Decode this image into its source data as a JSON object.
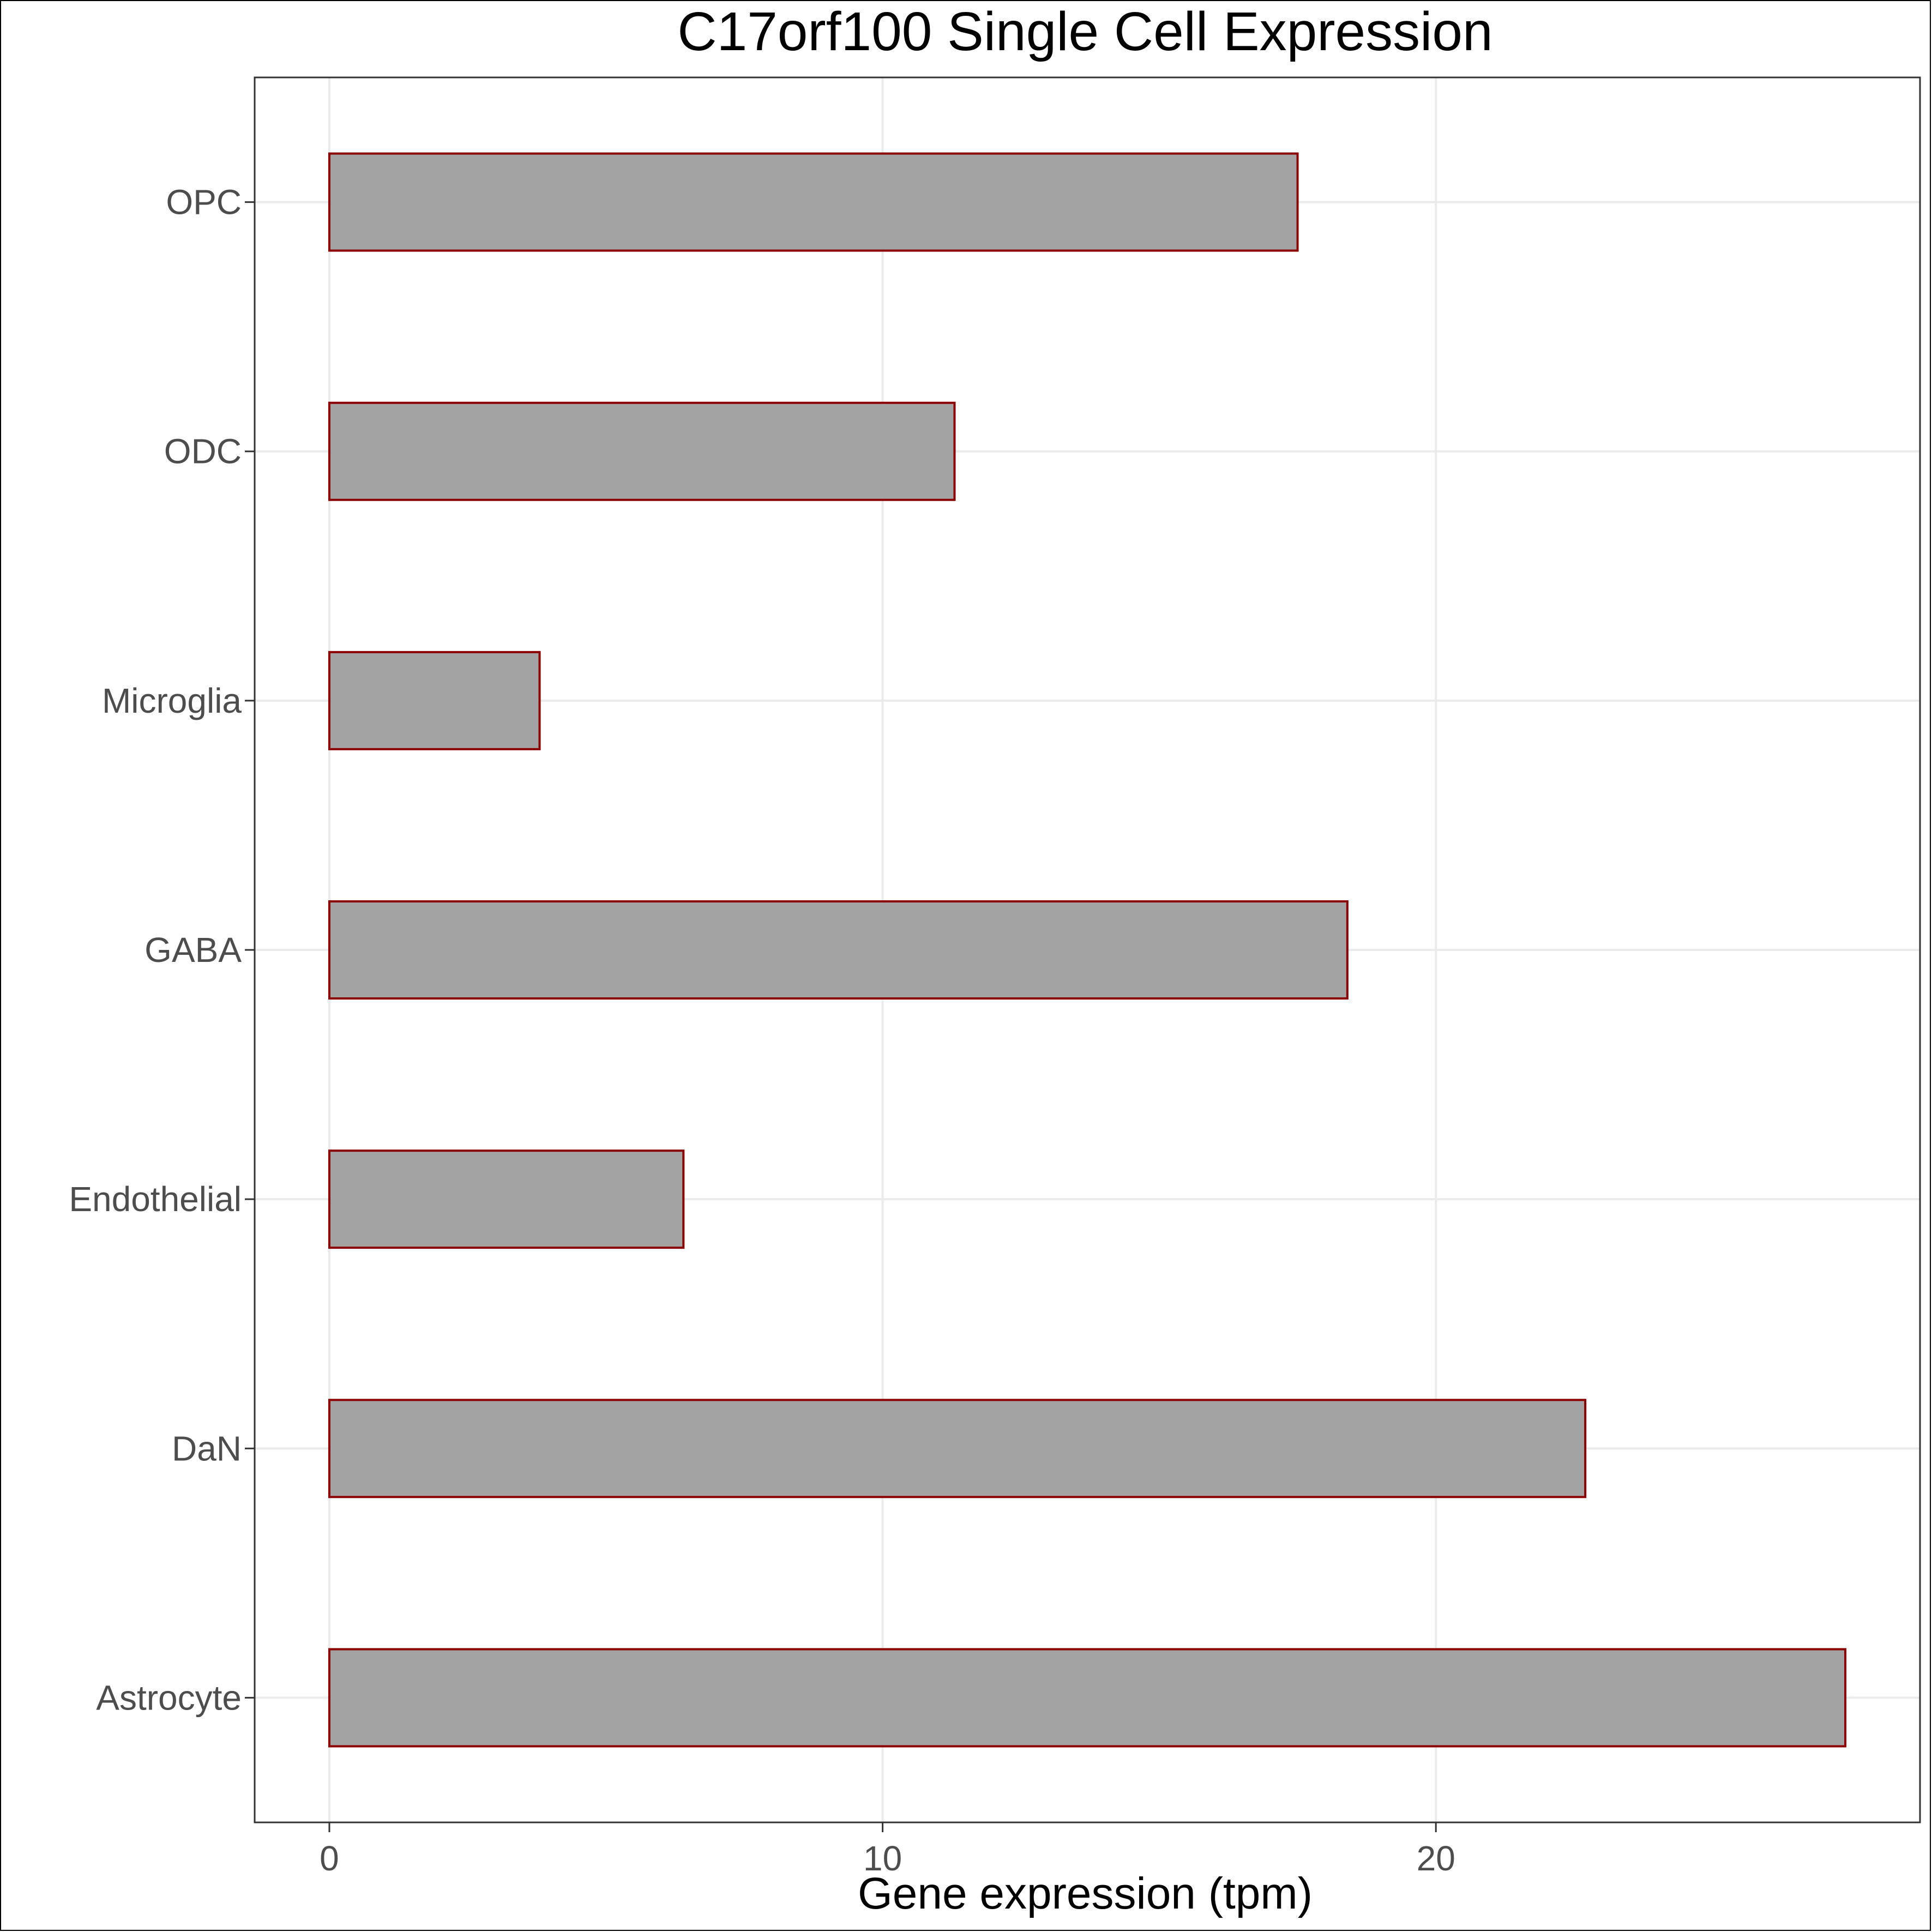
{
  "chart_data": {
    "type": "bar",
    "orientation": "horizontal",
    "title": "C17orf100 Single Cell Expression",
    "xlabel": "Gene expression (tpm)",
    "ylabel": "",
    "categories": [
      "Astrocyte",
      "DaN",
      "Endothelial",
      "GABA",
      "Microglia",
      "ODC",
      "OPC"
    ],
    "values": [
      27.4,
      22.7,
      6.4,
      18.4,
      3.8,
      11.3,
      17.5
    ],
    "xlim": [
      -1.35,
      28.75
    ],
    "xticks": [
      0,
      10,
      20
    ],
    "grid": true,
    "legend": "none",
    "colors": {
      "bar_fill": "#a3a3a3",
      "bar_outline": "#8b0000",
      "grid": "#ebebeb",
      "panel_border": "#333333",
      "tick_text": "#4d4d4d"
    }
  }
}
